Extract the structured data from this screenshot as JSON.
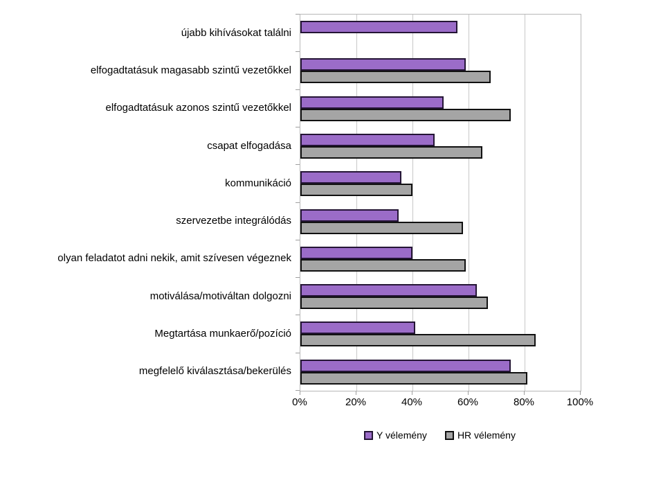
{
  "chart_data": {
    "type": "bar",
    "orientation": "horizontal",
    "title": "",
    "xlabel": "",
    "ylabel": "",
    "categories": [
      "újabb kihívásokat találni",
      "elfogadtatásuk magasabb szintű vezetőkkel",
      "elfogadtatásuk azonos szintű vezetőkkel",
      "csapat elfogadása",
      "kommunikáció",
      "szervezetbe integrálódás",
      "olyan feladatot adni nekik, amit szívesen végeznek",
      "motiválása/motiváltan dolgozni",
      "Megtartása munkaerő/pozíció",
      "megfelelő kiválasztása/bekerülés"
    ],
    "series": [
      {
        "name": "Y vélemény",
        "fill_color": "#9B6CC8",
        "border_color": "#241535",
        "values": [
          56,
          59,
          51,
          48,
          36,
          35,
          40,
          63,
          41,
          75
        ]
      },
      {
        "name": "HR vélemény",
        "fill_color": "#A5A5A5",
        "border_color": "#111111",
        "values": [
          0,
          68,
          75,
          65,
          40,
          58,
          59,
          67,
          84,
          81
        ]
      }
    ],
    "x_ticks": [
      "0%",
      "20%",
      "40%",
      "60%",
      "80%",
      "100%"
    ],
    "x_tick_values": [
      0,
      20,
      40,
      60,
      80,
      100
    ],
    "xlim": [
      0,
      100
    ],
    "grid": true,
    "legend_position": "bottom",
    "colors": {
      "gridline": "#C8C8C8",
      "plot_border": "#B8B8B8",
      "tick": "#9E9E9E",
      "text": "#000000",
      "background": "#FFFFFF"
    }
  }
}
